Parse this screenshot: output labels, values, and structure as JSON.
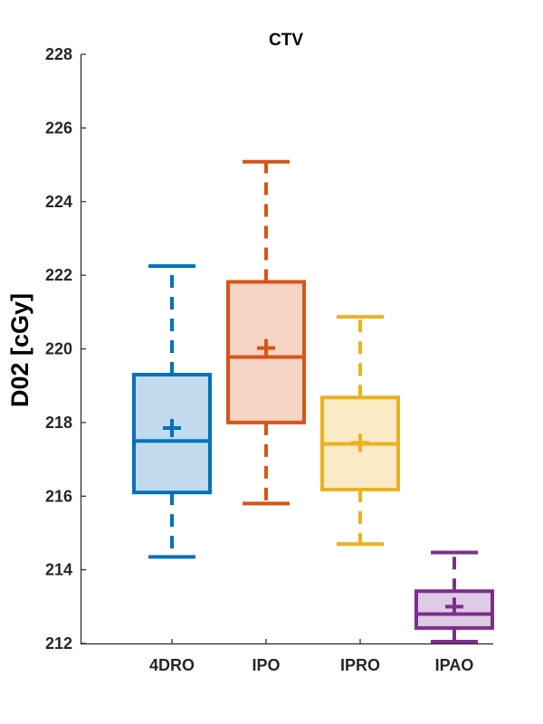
{
  "chart_data": {
    "type": "boxplot",
    "title": "CTV",
    "xlabel": "",
    "ylabel": "D02 [cGy]",
    "ylim": [
      212,
      228
    ],
    "yticks": [
      "212",
      "214",
      "216",
      "218",
      "220",
      "222",
      "224",
      "226",
      "228"
    ],
    "categories": [
      "4DRO",
      "IPO",
      "IPRO",
      "IPAO"
    ],
    "grid": false,
    "boxes": [
      {
        "category": "4DRO",
        "whisker_low": 214.35,
        "q1": 216.1,
        "median": 217.5,
        "q3": 219.3,
        "whisker_high": 222.25,
        "mean": 217.85,
        "color": "#0072BD",
        "fill": "#C1DAEE"
      },
      {
        "category": "IPO",
        "whisker_low": 215.8,
        "q1": 218.0,
        "median": 219.78,
        "q3": 221.82,
        "whisker_high": 225.08,
        "mean": 220.02,
        "color": "#D95319",
        "fill": "#F5D3C5"
      },
      {
        "category": "IPRO",
        "whisker_low": 214.7,
        "q1": 216.18,
        "median": 217.42,
        "q3": 218.68,
        "whisker_high": 220.87,
        "mean": 217.45,
        "color": "#EDB120",
        "fill": "#FAEBC6"
      },
      {
        "category": "IPAO",
        "whisker_low": 212.05,
        "q1": 212.42,
        "median": 212.8,
        "q3": 213.42,
        "whisker_high": 214.47,
        "mean": 213.0,
        "color": "#7E2F8E",
        "fill": "#DFCBE3"
      }
    ]
  }
}
